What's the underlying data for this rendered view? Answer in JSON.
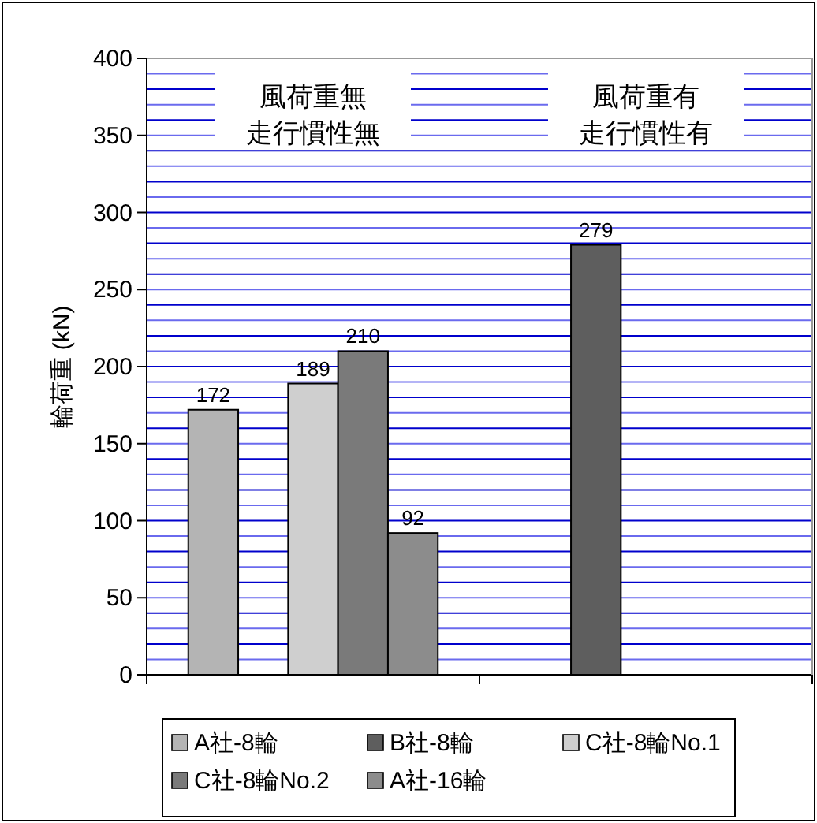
{
  "chart_data": {
    "type": "bar",
    "ylabel": "輪荷重 (kN)",
    "categories": [
      null,
      null
    ],
    "series": [
      {
        "name": "A社-8輪",
        "color": "#b4b4b4",
        "values": [
          172,
          null
        ]
      },
      {
        "name": "B社-8輪",
        "color": "#5e5e5e",
        "values": [
          null,
          279
        ]
      },
      {
        "name": "C社-8輪No.1",
        "color": "#cfcfcf",
        "values": [
          189,
          null
        ]
      },
      {
        "name": "C社-8輪No.2",
        "color": "#7a7a7a",
        "values": [
          210,
          null
        ]
      },
      {
        "name": "A社-16輪",
        "color": "#8c8c8c",
        "values": [
          92,
          null
        ]
      }
    ],
    "ylim": [
      0,
      400
    ],
    "yticks": [
      0,
      {
        "value": 10,
        "label": null
      },
      {
        "value": 20,
        "label": null
      },
      {
        "value": 30,
        "label": null
      },
      {
        "value": 40,
        "label": null
      },
      50,
      {
        "value": 60,
        "label": null
      },
      {
        "value": 70,
        "label": null
      },
      {
        "value": 80,
        "label": null
      },
      {
        "value": 90,
        "label": null
      },
      100,
      {
        "value": 110,
        "label": null
      },
      {
        "value": 120,
        "label": null
      },
      {
        "value": 130,
        "label": null
      },
      {
        "value": 140,
        "label": null
      },
      150,
      {
        "value": 160,
        "label": null
      },
      {
        "value": 170,
        "label": null
      },
      {
        "value": 180,
        "label": null
      },
      {
        "value": 190,
        "label": null
      },
      200,
      {
        "value": 210,
        "label": null
      },
      {
        "value": 220,
        "label": null
      },
      {
        "value": 230,
        "label": null
      },
      {
        "value": 240,
        "label": null
      },
      250,
      {
        "value": 260,
        "label": null
      },
      {
        "value": 270,
        "label": null
      },
      {
        "value": 280,
        "label": null
      },
      {
        "value": 290,
        "label": null
      },
      300,
      {
        "value": 310,
        "label": null
      },
      {
        "value": 320,
        "label": null
      },
      {
        "value": 330,
        "label": null
      },
      {
        "value": 340,
        "label": null
      },
      350,
      {
        "value": 360,
        "label": null
      },
      {
        "value": 370,
        "label": null
      },
      {
        "value": 380,
        "label": null
      },
      {
        "value": 390,
        "label": null
      },
      400
    ],
    "grid": "y",
    "data_labels": true,
    "legend": "bottom",
    "annotations": [
      "風荷重無",
      "走行慣性無",
      "風荷重有",
      "走行慣性有"
    ]
  }
}
